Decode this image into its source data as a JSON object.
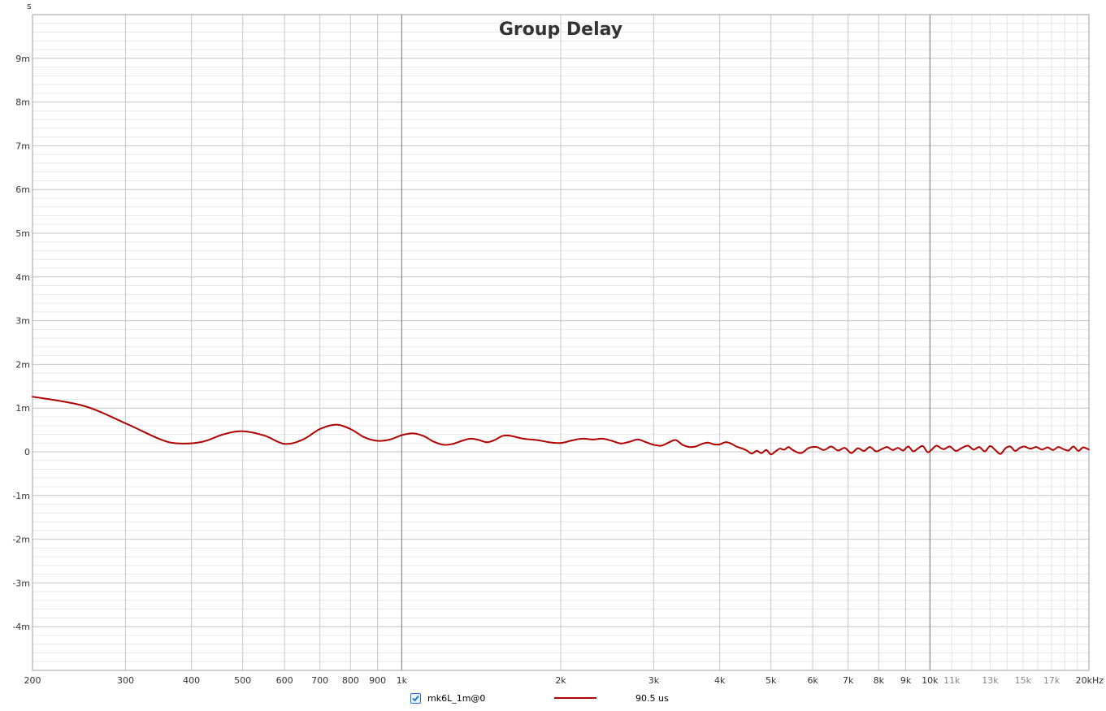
{
  "chart_data": {
    "type": "line",
    "title": "Group Delay",
    "y_unit_label": "s",
    "x_scale": "log",
    "xlim": [
      200,
      20000
    ],
    "ylim": [
      -0.005,
      0.01
    ],
    "grid": true,
    "x_ticks": [
      {
        "value": 200,
        "label": "200",
        "style": "major"
      },
      {
        "value": 300,
        "label": "300",
        "style": "major"
      },
      {
        "value": 400,
        "label": "400",
        "style": "major"
      },
      {
        "value": 500,
        "label": "500",
        "style": "major"
      },
      {
        "value": 600,
        "label": "600",
        "style": "major"
      },
      {
        "value": 700,
        "label": "700",
        "style": "major"
      },
      {
        "value": 800,
        "label": "800",
        "style": "major"
      },
      {
        "value": 900,
        "label": "900",
        "style": "major"
      },
      {
        "value": 1000,
        "label": "1k",
        "style": "major"
      },
      {
        "value": 2000,
        "label": "2k",
        "style": "major"
      },
      {
        "value": 3000,
        "label": "3k",
        "style": "major"
      },
      {
        "value": 4000,
        "label": "4k",
        "style": "major"
      },
      {
        "value": 5000,
        "label": "5k",
        "style": "major"
      },
      {
        "value": 6000,
        "label": "6k",
        "style": "major"
      },
      {
        "value": 7000,
        "label": "7k",
        "style": "major"
      },
      {
        "value": 8000,
        "label": "8k",
        "style": "major"
      },
      {
        "value": 9000,
        "label": "9k",
        "style": "major"
      },
      {
        "value": 10000,
        "label": "10k",
        "style": "major"
      },
      {
        "value": 11000,
        "label": "11k",
        "style": "minor"
      },
      {
        "value": 13000,
        "label": "13k",
        "style": "minor"
      },
      {
        "value": 15000,
        "label": "15k",
        "style": "minor"
      },
      {
        "value": 17000,
        "label": "17k",
        "style": "minor"
      },
      {
        "value": 20000,
        "label": "20kHz",
        "style": "major"
      }
    ],
    "y_ticks": [
      {
        "value": 0.009,
        "label": "9m"
      },
      {
        "value": 0.008,
        "label": "8m"
      },
      {
        "value": 0.007,
        "label": "7m"
      },
      {
        "value": 0.006,
        "label": "6m"
      },
      {
        "value": 0.005,
        "label": "5m"
      },
      {
        "value": 0.004,
        "label": "4m"
      },
      {
        "value": 0.003,
        "label": "3m"
      },
      {
        "value": 0.002,
        "label": "2m"
      },
      {
        "value": 0.001,
        "label": "1m"
      },
      {
        "value": 0,
        "label": "0"
      },
      {
        "value": -0.001,
        "label": "-1m"
      },
      {
        "value": -0.002,
        "label": "-2m"
      },
      {
        "value": -0.003,
        "label": "-3m"
      },
      {
        "value": -0.004,
        "label": "-4m"
      }
    ],
    "series": [
      {
        "name": "mk6L_1m@0",
        "color": "#b00000",
        "x": [
          200,
          250,
          300,
          350,
          380,
          420,
          460,
          500,
          550,
          600,
          650,
          700,
          750,
          800,
          850,
          900,
          950,
          1000,
          1050,
          1100,
          1150,
          1200,
          1250,
          1300,
          1350,
          1400,
          1450,
          1500,
          1550,
          1600,
          1700,
          1800,
          1900,
          2000,
          2100,
          2200,
          2300,
          2400,
          2500,
          2600,
          2700,
          2800,
          2900,
          3000,
          3100,
          3200,
          3300,
          3400,
          3500,
          3600,
          3700,
          3800,
          3900,
          4000,
          4100,
          4200,
          4300,
          4400,
          4500,
          4600,
          4700,
          4800,
          4900,
          5000,
          5100,
          5200,
          5300,
          5400,
          5500,
          5700,
          5900,
          6100,
          6300,
          6500,
          6700,
          6900,
          7100,
          7300,
          7500,
          7700,
          7900,
          8100,
          8300,
          8500,
          8700,
          8900,
          9100,
          9300,
          9500,
          9700,
          9900,
          10100,
          10300,
          10600,
          10900,
          11200,
          11500,
          11800,
          12100,
          12400,
          12700,
          13000,
          13300,
          13600,
          13900,
          14200,
          14500,
          14800,
          15100,
          15500,
          15900,
          16300,
          16700,
          17100,
          17500,
          17900,
          18300,
          18700,
          19100,
          19500,
          20000
        ],
        "y": [
          0.00126,
          0.00105,
          0.00065,
          0.00028,
          0.00019,
          0.00023,
          0.0004,
          0.00047,
          0.00037,
          0.00018,
          0.00028,
          0.00052,
          0.00062,
          0.00052,
          0.00033,
          0.00025,
          0.00028,
          0.00038,
          0.00042,
          0.00036,
          0.00023,
          0.00016,
          0.00018,
          0.00025,
          0.0003,
          0.00027,
          0.00022,
          0.00027,
          0.00036,
          0.00037,
          0.0003,
          0.00027,
          0.00022,
          0.0002,
          0.00026,
          0.0003,
          0.00028,
          0.0003,
          0.00025,
          0.00019,
          0.00023,
          0.00028,
          0.00022,
          0.00016,
          0.00014,
          0.00021,
          0.00027,
          0.00016,
          0.00011,
          0.00012,
          0.00018,
          0.00021,
          0.00017,
          0.00017,
          0.00022,
          0.00019,
          0.00012,
          8e-05,
          3e-05,
          -4e-05,
          2e-05,
          -3e-05,
          4e-05,
          -6e-05,
          1e-05,
          7e-05,
          5e-05,
          0.00011,
          4e-05,
          -3e-05,
          9e-05,
          0.00011,
          4e-05,
          0.00012,
          3e-05,
          9e-05,
          -3e-05,
          8e-05,
          2e-05,
          0.00011,
          1e-05,
          6e-05,
          0.00011,
          4e-05,
          9e-05,
          3e-05,
          0.00012,
          1e-05,
          8e-05,
          0.00013,
          -1e-05,
          6e-05,
          0.00014,
          6e-05,
          0.00012,
          2e-05,
          9e-05,
          0.00014,
          5e-05,
          0.00011,
          1e-05,
          0.00013,
          4e-05,
          -5e-05,
          8e-05,
          0.00012,
          2e-05,
          9e-05,
          0.00012,
          7e-05,
          0.00011,
          5e-05,
          0.0001,
          4e-05,
          0.00011,
          6e-05,
          3e-05,
          0.00012,
          2e-05,
          0.0001,
          5e-05
        ]
      }
    ],
    "legend": {
      "checked": true,
      "series_name": "mk6L_1m@0",
      "value": "90.5 us"
    }
  }
}
